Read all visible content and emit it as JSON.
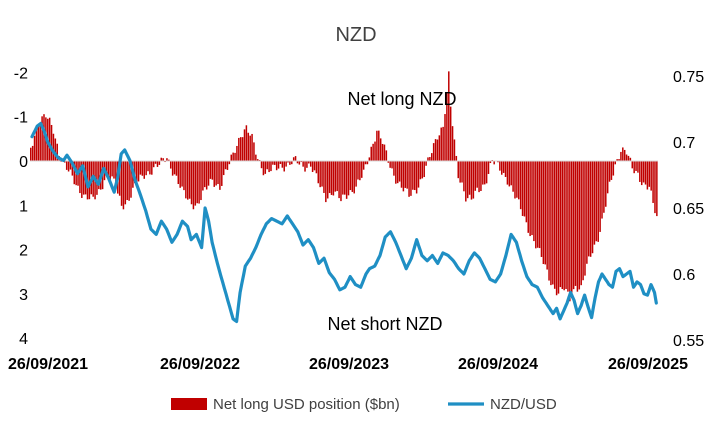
{
  "chart_data": {
    "type": "bar+line",
    "title": "NZD",
    "left_axis": {
      "ticks": [
        "-2",
        "-1",
        "0",
        "1",
        "2",
        "3",
        "4"
      ],
      "range": [
        -2,
        4
      ],
      "inverted": true
    },
    "right_axis": {
      "ticks": [
        "0.75",
        "0.7",
        "0.65",
        "0.6",
        "0.55"
      ],
      "range": [
        0.55,
        0.75
      ]
    },
    "x_ticks": [
      "26/09/2021",
      "26/09/2022",
      "26/09/2023",
      "26/09/2024",
      "26/09/2025"
    ],
    "annotations": {
      "top": "Net long NZD",
      "bottom": "Net short NZD"
    },
    "legend": [
      "Net long USD position ($bn)",
      "NZD/USD"
    ],
    "colors": {
      "bars": "#c00000",
      "line": "#1f8fc4"
    },
    "bar_keypoints": [
      [
        0,
        -0.3
      ],
      [
        4,
        -0.9
      ],
      [
        8,
        -1.0
      ],
      [
        12,
        -0.7
      ],
      [
        15,
        -0.2
      ],
      [
        18,
        0.1
      ],
      [
        22,
        0.4
      ],
      [
        25,
        0.6
      ],
      [
        29,
        0.8
      ],
      [
        33,
        0.9
      ],
      [
        36,
        0.7
      ],
      [
        40,
        0.3
      ],
      [
        44,
        0.5
      ],
      [
        48,
        1.0
      ],
      [
        51,
        0.9
      ],
      [
        55,
        0.6
      ],
      [
        60,
        0.3
      ],
      [
        64,
        0.2
      ],
      [
        68,
        0.1
      ],
      [
        72,
        -0.1
      ],
      [
        76,
        0.3
      ],
      [
        80,
        0.7
      ],
      [
        84,
        0.9
      ],
      [
        88,
        1.0
      ],
      [
        92,
        0.7
      ],
      [
        96,
        0.4
      ],
      [
        100,
        0.6
      ],
      [
        104,
        0.2
      ],
      [
        108,
        -0.3
      ],
      [
        111,
        -0.6
      ],
      [
        114,
        -0.7
      ],
      [
        117,
        -0.5
      ],
      [
        120,
        -0.1
      ],
      [
        124,
        0.3
      ],
      [
        128,
        0.2
      ],
      [
        132,
        0.1
      ],
      [
        136,
        0.1
      ],
      [
        140,
        0.0
      ],
      [
        144,
        0.1
      ],
      [
        148,
        0.1
      ],
      [
        152,
        0.5
      ],
      [
        156,
        0.8
      ],
      [
        160,
        0.7
      ],
      [
        164,
        0.9
      ],
      [
        168,
        0.7
      ],
      [
        172,
        0.6
      ],
      [
        176,
        0.3
      ],
      [
        180,
        -0.3
      ],
      [
        183,
        -0.7
      ],
      [
        186,
        -0.4
      ],
      [
        189,
        0.0
      ],
      [
        192,
        0.3
      ],
      [
        196,
        0.6
      ],
      [
        200,
        0.8
      ],
      [
        204,
        0.6
      ],
      [
        208,
        0.3
      ],
      [
        212,
        -0.2
      ],
      [
        215,
        -0.6
      ],
      [
        218,
        -0.8
      ],
      [
        220,
        -1.5
      ],
      [
        221,
        -1.9
      ],
      [
        222,
        -1.2
      ],
      [
        224,
        -0.4
      ],
      [
        226,
        0.3
      ],
      [
        228,
        0.5
      ],
      [
        230,
        0.8
      ],
      [
        233,
        0.9
      ],
      [
        236,
        0.7
      ],
      [
        240,
        0.5
      ],
      [
        244,
        0.0
      ],
      [
        248,
        0.2
      ],
      [
        252,
        0.4
      ],
      [
        256,
        0.8
      ],
      [
        260,
        1.2
      ],
      [
        264,
        1.6
      ],
      [
        268,
        2.0
      ],
      [
        272,
        2.4
      ],
      [
        276,
        2.8
      ],
      [
        279,
        3.0
      ],
      [
        282,
        2.9
      ],
      [
        285,
        3.1
      ],
      [
        288,
        2.8
      ],
      [
        291,
        2.9
      ],
      [
        294,
        2.4
      ],
      [
        297,
        2.0
      ],
      [
        300,
        1.7
      ],
      [
        303,
        1.2
      ],
      [
        306,
        0.6
      ],
      [
        309,
        0.1
      ],
      [
        312,
        -0.3
      ],
      [
        315,
        -0.2
      ],
      [
        318,
        0.2
      ],
      [
        321,
        0.3
      ],
      [
        324,
        0.5
      ],
      [
        327,
        0.6
      ],
      [
        329,
        1.0
      ],
      [
        331,
        1.3
      ]
    ],
    "line_keypoints": [
      [
        0,
        0.704
      ],
      [
        3,
        0.712
      ],
      [
        5,
        0.714
      ],
      [
        7,
        0.708
      ],
      [
        9,
        0.7
      ],
      [
        12,
        0.693
      ],
      [
        15,
        0.688
      ],
      [
        18,
        0.686
      ],
      [
        20,
        0.69
      ],
      [
        23,
        0.684
      ],
      [
        26,
        0.676
      ],
      [
        29,
        0.682
      ],
      [
        32,
        0.666
      ],
      [
        35,
        0.674
      ],
      [
        38,
        0.668
      ],
      [
        41,
        0.68
      ],
      [
        44,
        0.672
      ],
      [
        47,
        0.662
      ],
      [
        49,
        0.673
      ],
      [
        51,
        0.691
      ],
      [
        53,
        0.694
      ],
      [
        56,
        0.686
      ],
      [
        59,
        0.671
      ],
      [
        62,
        0.66
      ],
      [
        65,
        0.648
      ],
      [
        68,
        0.634
      ],
      [
        71,
        0.63
      ],
      [
        74,
        0.64
      ],
      [
        77,
        0.634
      ],
      [
        80,
        0.624
      ],
      [
        83,
        0.63
      ],
      [
        86,
        0.64
      ],
      [
        89,
        0.636
      ],
      [
        91,
        0.626
      ],
      [
        94,
        0.63
      ],
      [
        97,
        0.62
      ],
      [
        99,
        0.65
      ],
      [
        101,
        0.64
      ],
      [
        103,
        0.624
      ],
      [
        106,
        0.608
      ],
      [
        109,
        0.594
      ],
      [
        112,
        0.58
      ],
      [
        115,
        0.566
      ],
      [
        117,
        0.564
      ],
      [
        119,
        0.586
      ],
      [
        122,
        0.606
      ],
      [
        125,
        0.612
      ],
      [
        128,
        0.62
      ],
      [
        131,
        0.63
      ],
      [
        134,
        0.638
      ],
      [
        137,
        0.642
      ],
      [
        140,
        0.64
      ],
      [
        143,
        0.638
      ],
      [
        146,
        0.644
      ],
      [
        149,
        0.638
      ],
      [
        152,
        0.632
      ],
      [
        155,
        0.622
      ],
      [
        158,
        0.626
      ],
      [
        161,
        0.62
      ],
      [
        164,
        0.608
      ],
      [
        167,
        0.612
      ],
      [
        170,
        0.601
      ],
      [
        173,
        0.596
      ],
      [
        176,
        0.588
      ],
      [
        179,
        0.59
      ],
      [
        182,
        0.598
      ],
      [
        185,
        0.592
      ],
      [
        188,
        0.59
      ],
      [
        191,
        0.6
      ],
      [
        193,
        0.604
      ],
      [
        196,
        0.606
      ],
      [
        199,
        0.614
      ],
      [
        202,
        0.628
      ],
      [
        205,
        0.632
      ],
      [
        208,
        0.624
      ],
      [
        211,
        0.614
      ],
      [
        214,
        0.604
      ],
      [
        217,
        0.612
      ],
      [
        220,
        0.626
      ],
      [
        223,
        0.614
      ],
      [
        226,
        0.61
      ],
      [
        229,
        0.614
      ],
      [
        232,
        0.608
      ],
      [
        235,
        0.616
      ],
      [
        238,
        0.614
      ],
      [
        241,
        0.61
      ],
      [
        244,
        0.604
      ],
      [
        247,
        0.6
      ],
      [
        250,
        0.61
      ],
      [
        253,
        0.616
      ],
      [
        256,
        0.612
      ],
      [
        259,
        0.604
      ],
      [
        262,
        0.596
      ],
      [
        265,
        0.594
      ],
      [
        268,
        0.6
      ],
      [
        271,
        0.614
      ],
      [
        274,
        0.63
      ],
      [
        277,
        0.624
      ],
      [
        280,
        0.61
      ],
      [
        283,
        0.598
      ],
      [
        286,
        0.592
      ],
      [
        289,
        0.59
      ],
      [
        292,
        0.582
      ],
      [
        295,
        0.576
      ],
      [
        298,
        0.57
      ],
      [
        300,
        0.574
      ],
      [
        302,
        0.566
      ],
      [
        304,
        0.572
      ],
      [
        306,
        0.578
      ],
      [
        308,
        0.586
      ],
      [
        310,
        0.58
      ],
      [
        312,
        0.57
      ],
      [
        314,
        0.576
      ],
      [
        316,
        0.584
      ],
      [
        318,
        0.575
      ],
      [
        320,
        0.567
      ],
      [
        322,
        0.582
      ],
      [
        324,
        0.594
      ],
      [
        326,
        0.6
      ],
      [
        328,
        0.596
      ],
      [
        330,
        0.592
      ],
      [
        332,
        0.59
      ],
      [
        334,
        0.602
      ],
      [
        336,
        0.604
      ],
      [
        338,
        0.598
      ],
      [
        340,
        0.6
      ],
      [
        342,
        0.602
      ],
      [
        344,
        0.59
      ],
      [
        346,
        0.594
      ],
      [
        348,
        0.592
      ],
      [
        350,
        0.585
      ],
      [
        352,
        0.584
      ],
      [
        354,
        0.592
      ],
      [
        356,
        0.586
      ],
      [
        357,
        0.578
      ]
    ]
  }
}
